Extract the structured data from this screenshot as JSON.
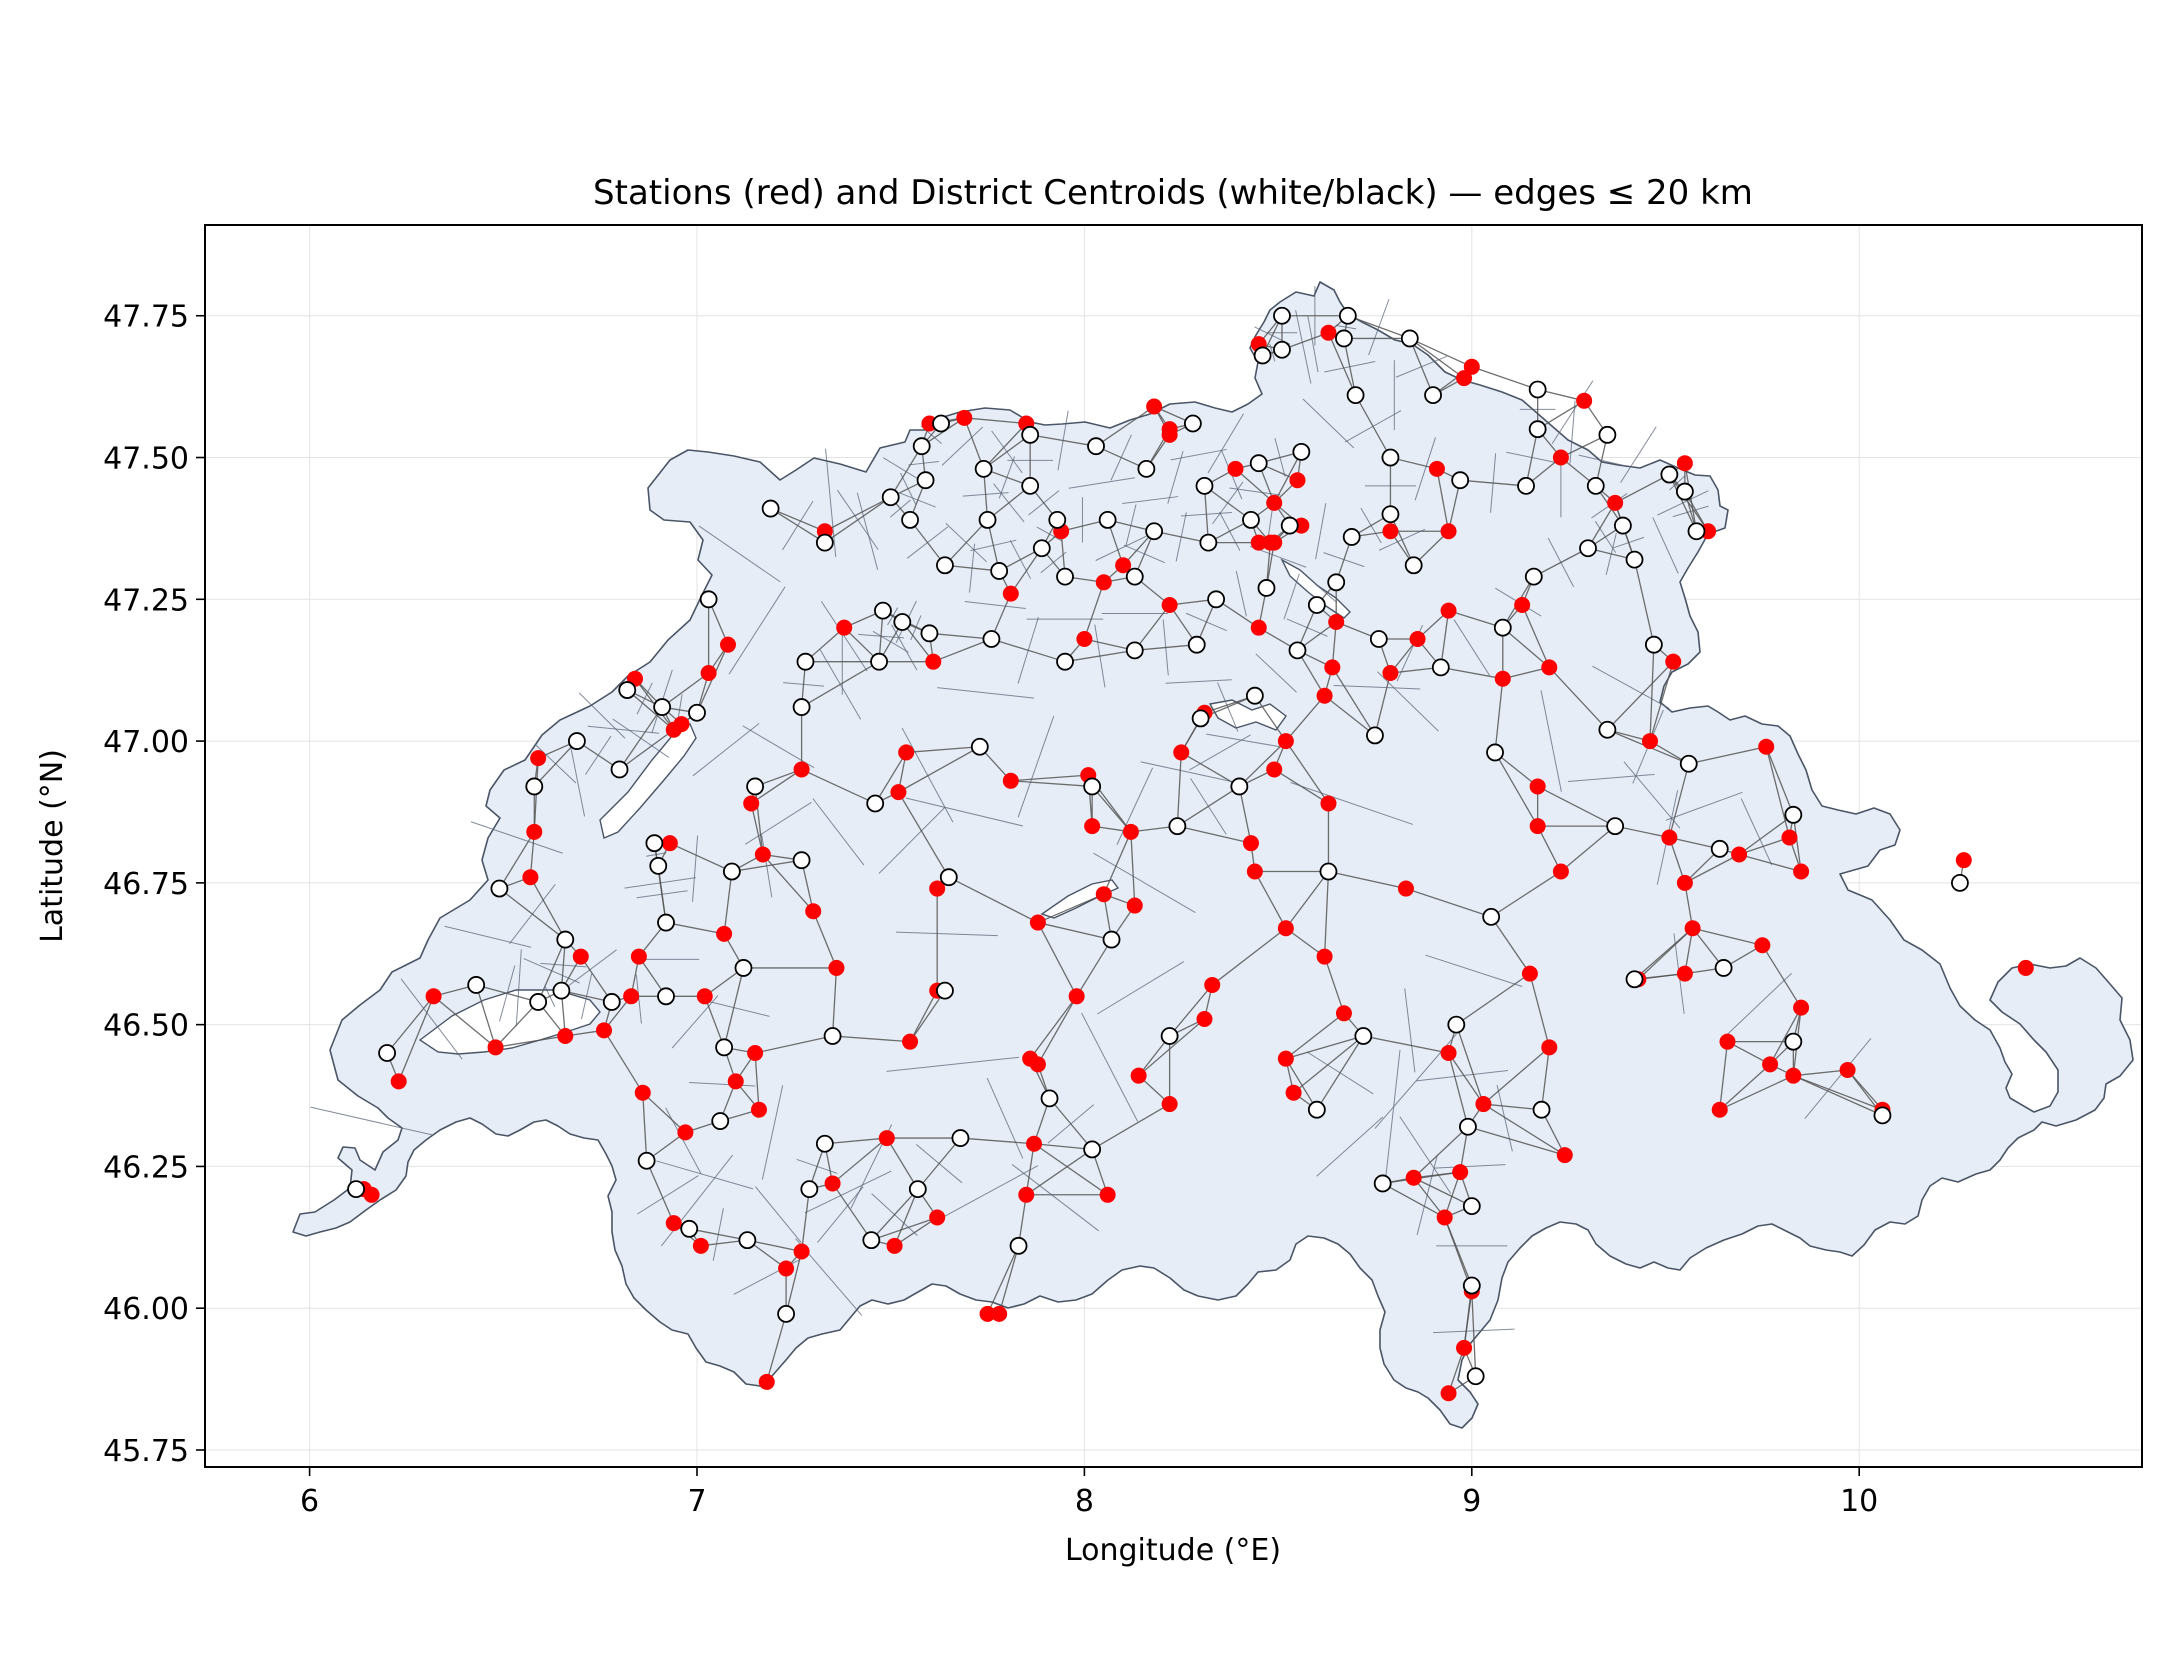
{
  "chart_data": {
    "type": "scatter",
    "title": "Stations (red) and District Centroids (white/black) — edges ≤ 20 km",
    "xlabel": "Longitude (°E)",
    "ylabel": "Latitude (°N)",
    "xlim": [
      5.73,
      10.73
    ],
    "ylim": [
      45.72,
      47.91
    ],
    "xticks": [
      6,
      7,
      8,
      9,
      10
    ],
    "xtick_labels": [
      "6",
      "7",
      "8",
      "9",
      "10"
    ],
    "yticks": [
      45.75,
      46.0,
      46.25,
      46.5,
      46.75,
      47.0,
      47.25,
      47.5,
      47.75
    ],
    "ytick_labels": [
      "45.75",
      "46.00",
      "46.25",
      "46.50",
      "46.75",
      "47.00",
      "47.25",
      "47.50",
      "47.75"
    ],
    "grid": true,
    "colors": {
      "station": "#ff0000",
      "centroid_fill": "#ffffff",
      "centroid_edge": "#000000",
      "edge": "#555555",
      "region_fill": "#e6edf6",
      "region_edge": "#4a5566"
    },
    "series": [
      {
        "name": "Stations",
        "points": [
          [
            6.14,
            46.21
          ],
          [
            6.16,
            46.2
          ],
          [
            6.23,
            46.4
          ],
          [
            6.32,
            46.55
          ],
          [
            6.48,
            46.46
          ],
          [
            6.57,
            46.76
          ],
          [
            6.58,
            46.84
          ],
          [
            6.59,
            46.97
          ],
          [
            6.66,
            46.48
          ],
          [
            6.7,
            46.62
          ],
          [
            6.76,
            46.49
          ],
          [
            6.83,
            46.55
          ],
          [
            6.85,
            46.62
          ],
          [
            6.84,
            47.11
          ],
          [
            6.86,
            46.38
          ],
          [
            6.93,
            46.82
          ],
          [
            6.94,
            47.02
          ],
          [
            6.96,
            47.03
          ],
          [
            6.97,
            46.31
          ],
          [
            6.94,
            46.15
          ],
          [
            7.01,
            46.11
          ],
          [
            7.02,
            46.55
          ],
          [
            7.03,
            47.12
          ],
          [
            7.07,
            46.66
          ],
          [
            7.08,
            47.17
          ],
          [
            7.1,
            46.4
          ],
          [
            7.14,
            46.89
          ],
          [
            7.15,
            46.45
          ],
          [
            7.17,
            46.8
          ],
          [
            7.16,
            46.35
          ],
          [
            7.18,
            45.87
          ],
          [
            7.23,
            46.07
          ],
          [
            7.27,
            46.1
          ],
          [
            7.27,
            46.95
          ],
          [
            7.3,
            46.7
          ],
          [
            7.33,
            47.37
          ],
          [
            7.35,
            46.22
          ],
          [
            7.36,
            46.6
          ],
          [
            7.38,
            47.2
          ],
          [
            7.49,
            46.3
          ],
          [
            7.51,
            46.11
          ],
          [
            7.52,
            46.91
          ],
          [
            7.54,
            46.98
          ],
          [
            7.55,
            46.47
          ],
          [
            7.6,
            47.56
          ],
          [
            7.61,
            47.14
          ],
          [
            7.62,
            46.16
          ],
          [
            7.62,
            46.56
          ],
          [
            7.62,
            46.74
          ],
          [
            7.69,
            47.57
          ],
          [
            7.75,
            45.99
          ],
          [
            7.78,
            45.99
          ],
          [
            7.81,
            47.26
          ],
          [
            7.81,
            46.93
          ],
          [
            7.85,
            47.56
          ],
          [
            7.86,
            46.44
          ],
          [
            7.85,
            46.2
          ],
          [
            7.87,
            46.29
          ],
          [
            7.88,
            46.43
          ],
          [
            7.88,
            46.68
          ],
          [
            7.94,
            47.37
          ],
          [
            7.98,
            46.55
          ],
          [
            8.0,
            47.18
          ],
          [
            8.01,
            46.94
          ],
          [
            8.02,
            46.85
          ],
          [
            8.05,
            47.28
          ],
          [
            8.05,
            46.73
          ],
          [
            8.06,
            46.2
          ],
          [
            8.1,
            47.31
          ],
          [
            8.12,
            46.84
          ],
          [
            8.13,
            46.71
          ],
          [
            8.14,
            46.41
          ],
          [
            8.18,
            47.59
          ],
          [
            8.22,
            47.55
          ],
          [
            8.22,
            47.54
          ],
          [
            8.22,
            47.24
          ],
          [
            8.22,
            46.36
          ],
          [
            8.25,
            46.98
          ],
          [
            8.31,
            47.05
          ],
          [
            8.31,
            46.51
          ],
          [
            8.33,
            46.57
          ],
          [
            8.39,
            47.48
          ],
          [
            8.43,
            46.82
          ],
          [
            8.44,
            46.77
          ],
          [
            8.45,
            47.7
          ],
          [
            8.45,
            47.35
          ],
          [
            8.45,
            47.2
          ],
          [
            8.48,
            47.35
          ],
          [
            8.49,
            47.42
          ],
          [
            8.49,
            47.35
          ],
          [
            8.49,
            46.95
          ],
          [
            8.52,
            47.0
          ],
          [
            8.52,
            46.67
          ],
          [
            8.52,
            46.44
          ],
          [
            8.55,
            47.46
          ],
          [
            8.56,
            47.38
          ],
          [
            8.54,
            46.38
          ],
          [
            8.62,
            47.08
          ],
          [
            8.62,
            46.62
          ],
          [
            8.63,
            47.72
          ],
          [
            8.63,
            46.89
          ],
          [
            8.64,
            47.13
          ],
          [
            8.65,
            47.21
          ],
          [
            8.67,
            46.52
          ],
          [
            8.79,
            47.12
          ],
          [
            8.79,
            47.37
          ],
          [
            8.83,
            46.74
          ],
          [
            8.85,
            46.23
          ],
          [
            8.86,
            47.18
          ],
          [
            8.91,
            47.48
          ],
          [
            8.93,
            46.16
          ],
          [
            8.94,
            47.23
          ],
          [
            8.94,
            47.37
          ],
          [
            8.94,
            46.45
          ],
          [
            8.94,
            45.85
          ],
          [
            8.97,
            46.24
          ],
          [
            8.98,
            47.64
          ],
          [
            8.98,
            45.93
          ],
          [
            9.0,
            47.66
          ],
          [
            9.0,
            46.03
          ],
          [
            9.03,
            46.36
          ],
          [
            9.08,
            47.11
          ],
          [
            9.13,
            47.24
          ],
          [
            9.15,
            46.59
          ],
          [
            9.17,
            46.92
          ],
          [
            9.17,
            46.85
          ],
          [
            9.2,
            47.13
          ],
          [
            9.2,
            46.46
          ],
          [
            9.23,
            47.5
          ],
          [
            9.23,
            46.77
          ],
          [
            9.24,
            46.27
          ],
          [
            9.29,
            47.6
          ],
          [
            9.37,
            47.42
          ],
          [
            9.43,
            46.58
          ],
          [
            9.46,
            47.0
          ],
          [
            9.51,
            46.83
          ],
          [
            9.52,
            47.14
          ],
          [
            9.55,
            46.59
          ],
          [
            9.55,
            47.49
          ],
          [
            9.55,
            46.75
          ],
          [
            9.57,
            46.67
          ],
          [
            9.61,
            47.37
          ],
          [
            9.64,
            46.35
          ],
          [
            9.66,
            46.47
          ],
          [
            9.69,
            46.8
          ],
          [
            9.75,
            46.64
          ],
          [
            9.76,
            46.99
          ],
          [
            9.77,
            46.43
          ],
          [
            9.82,
            46.83
          ],
          [
            9.83,
            46.41
          ],
          [
            9.85,
            46.77
          ],
          [
            9.85,
            46.53
          ],
          [
            9.97,
            46.42
          ],
          [
            10.06,
            46.35
          ],
          [
            10.27,
            46.79
          ],
          [
            10.43,
            46.6
          ]
        ]
      },
      {
        "name": "District Centroids",
        "points": [
          [
            6.12,
            46.21
          ],
          [
            6.2,
            46.45
          ],
          [
            6.43,
            46.57
          ],
          [
            6.49,
            46.74
          ],
          [
            6.58,
            46.92
          ],
          [
            6.59,
            46.54
          ],
          [
            6.65,
            46.56
          ],
          [
            6.66,
            46.65
          ],
          [
            6.69,
            47.0
          ],
          [
            6.78,
            46.54
          ],
          [
            6.8,
            46.95
          ],
          [
            6.82,
            47.09
          ],
          [
            6.87,
            46.26
          ],
          [
            6.89,
            46.82
          ],
          [
            6.9,
            46.78
          ],
          [
            6.91,
            47.06
          ],
          [
            6.92,
            46.68
          ],
          [
            6.92,
            46.55
          ],
          [
            6.98,
            46.14
          ],
          [
            7.0,
            47.05
          ],
          [
            7.03,
            47.25
          ],
          [
            7.07,
            46.46
          ],
          [
            7.06,
            46.33
          ],
          [
            7.09,
            46.77
          ],
          [
            7.13,
            46.12
          ],
          [
            7.12,
            46.6
          ],
          [
            7.15,
            46.92
          ],
          [
            7.19,
            47.41
          ],
          [
            7.27,
            46.79
          ],
          [
            7.28,
            47.14
          ],
          [
            7.27,
            47.06
          ],
          [
            7.29,
            46.21
          ],
          [
            7.23,
            45.99
          ],
          [
            7.33,
            46.29
          ],
          [
            7.33,
            47.35
          ],
          [
            7.35,
            46.48
          ],
          [
            7.45,
            46.12
          ],
          [
            7.46,
            46.89
          ],
          [
            7.47,
            47.14
          ],
          [
            7.48,
            47.23
          ],
          [
            7.5,
            47.43
          ],
          [
            7.53,
            47.21
          ],
          [
            7.55,
            47.39
          ],
          [
            7.58,
            47.52
          ],
          [
            7.59,
            47.46
          ],
          [
            7.6,
            47.19
          ],
          [
            7.57,
            46.21
          ],
          [
            7.63,
            47.56
          ],
          [
            7.64,
            47.31
          ],
          [
            7.65,
            46.76
          ],
          [
            7.64,
            46.56
          ],
          [
            7.68,
            46.3
          ],
          [
            7.73,
            46.99
          ],
          [
            7.74,
            47.48
          ],
          [
            7.75,
            47.39
          ],
          [
            7.76,
            47.18
          ],
          [
            7.78,
            47.3
          ],
          [
            7.83,
            46.11
          ],
          [
            7.86,
            47.45
          ],
          [
            7.86,
            47.54
          ],
          [
            7.89,
            47.34
          ],
          [
            7.91,
            46.37
          ],
          [
            7.93,
            47.39
          ],
          [
            7.95,
            47.14
          ],
          [
            7.95,
            47.29
          ],
          [
            8.03,
            47.52
          ],
          [
            8.02,
            46.28
          ],
          [
            8.02,
            46.92
          ],
          [
            8.06,
            47.39
          ],
          [
            8.07,
            46.65
          ],
          [
            8.13,
            47.16
          ],
          [
            8.13,
            47.29
          ],
          [
            8.16,
            47.48
          ],
          [
            8.18,
            47.37
          ],
          [
            8.22,
            46.48
          ],
          [
            8.24,
            46.85
          ],
          [
            8.28,
            47.56
          ],
          [
            8.29,
            47.17
          ],
          [
            8.3,
            47.04
          ],
          [
            8.31,
            47.45
          ],
          [
            8.32,
            47.35
          ],
          [
            8.34,
            47.25
          ],
          [
            8.4,
            46.92
          ],
          [
            8.43,
            47.39
          ],
          [
            8.44,
            47.08
          ],
          [
            8.45,
            47.49
          ],
          [
            8.46,
            47.68
          ],
          [
            8.47,
            47.27
          ],
          [
            8.51,
            47.69
          ],
          [
            8.51,
            47.75
          ],
          [
            8.53,
            47.38
          ],
          [
            8.55,
            47.16
          ],
          [
            8.56,
            47.51
          ],
          [
            8.6,
            47.24
          ],
          [
            8.6,
            46.35
          ],
          [
            8.63,
            46.77
          ],
          [
            8.65,
            47.28
          ],
          [
            8.67,
            47.71
          ],
          [
            8.68,
            47.75
          ],
          [
            8.69,
            47.36
          ],
          [
            8.7,
            47.61
          ],
          [
            8.72,
            46.48
          ],
          [
            8.75,
            47.01
          ],
          [
            8.76,
            47.18
          ],
          [
            8.77,
            46.22
          ],
          [
            8.79,
            47.4
          ],
          [
            8.79,
            47.5
          ],
          [
            8.84,
            47.71
          ],
          [
            8.85,
            47.31
          ],
          [
            8.9,
            47.61
          ],
          [
            8.92,
            47.13
          ],
          [
            8.96,
            46.5
          ],
          [
            8.97,
            47.46
          ],
          [
            8.99,
            46.32
          ],
          [
            9.0,
            46.18
          ],
          [
            9.0,
            46.04
          ],
          [
            9.01,
            45.88
          ],
          [
            9.05,
            46.69
          ],
          [
            9.06,
            46.98
          ],
          [
            9.08,
            47.2
          ],
          [
            9.14,
            47.45
          ],
          [
            9.16,
            47.29
          ],
          [
            9.17,
            47.55
          ],
          [
            9.17,
            47.62
          ],
          [
            9.18,
            46.35
          ],
          [
            9.3,
            47.34
          ],
          [
            9.32,
            47.45
          ],
          [
            9.35,
            47.02
          ],
          [
            9.35,
            47.54
          ],
          [
            9.37,
            46.85
          ],
          [
            9.39,
            47.38
          ],
          [
            9.42,
            46.58
          ],
          [
            9.42,
            47.32
          ],
          [
            9.47,
            47.17
          ],
          [
            9.51,
            47.47
          ],
          [
            9.55,
            47.44
          ],
          [
            9.56,
            46.96
          ],
          [
            9.58,
            47.37
          ],
          [
            9.64,
            46.81
          ],
          [
            9.65,
            46.6
          ],
          [
            9.83,
            46.47
          ],
          [
            9.83,
            46.87
          ],
          [
            10.06,
            46.34
          ],
          [
            10.26,
            46.75
          ]
        ]
      }
    ]
  }
}
